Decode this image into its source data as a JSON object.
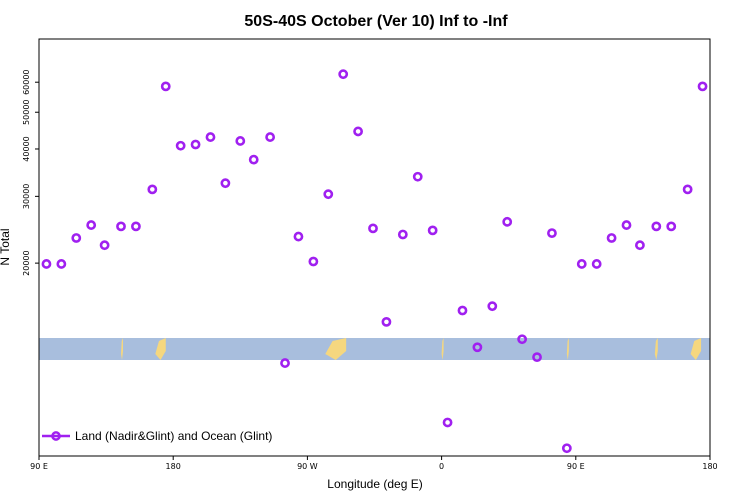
{
  "chart_data": {
    "type": "scatter",
    "title": "50S-40S October (Ver 10)   Inf to -Inf",
    "xlabel": "Longitude (deg E)",
    "ylabel": "N Total",
    "x_tick_labels": [
      "90 E",
      "180",
      "90 W",
      "0",
      "90 E",
      "180"
    ],
    "x_tick_values": [
      90,
      180,
      270,
      360,
      450,
      540
    ],
    "xlim": [
      90,
      540
    ],
    "y_scale": "log",
    "ylim": [
      6200,
      78000
    ],
    "y_tick_values": [
      20000,
      30000,
      40000,
      50000,
      60000
    ],
    "y_tick_labels": [
      "20000",
      "30000",
      "40000",
      "50000",
      "60000"
    ],
    "legend": {
      "label": "Land (Nadir&Glint) and Ocean (Glint)",
      "position": "bottom-left"
    },
    "series": [
      {
        "name": "Land (Nadir&Glint) and Ocean (Glint)",
        "color": "#a020f0",
        "points": [
          {
            "x": 95,
            "y": 19900
          },
          {
            "x": 105,
            "y": 19900
          },
          {
            "x": 115,
            "y": 23300
          },
          {
            "x": 125,
            "y": 25200
          },
          {
            "x": 134,
            "y": 22300
          },
          {
            "x": 145,
            "y": 25000
          },
          {
            "x": 155,
            "y": 25000
          },
          {
            "x": 166,
            "y": 31300
          },
          {
            "x": 175,
            "y": 58500
          },
          {
            "x": 185,
            "y": 40800
          },
          {
            "x": 195,
            "y": 41100
          },
          {
            "x": 205,
            "y": 43000
          },
          {
            "x": 215,
            "y": 32500
          },
          {
            "x": 225,
            "y": 42000
          },
          {
            "x": 234,
            "y": 37500
          },
          {
            "x": 245,
            "y": 43000
          },
          {
            "x": 255,
            "y": 10900
          },
          {
            "x": 264,
            "y": 23500
          },
          {
            "x": 274,
            "y": 20200
          },
          {
            "x": 284,
            "y": 30400
          },
          {
            "x": 294,
            "y": 63000
          },
          {
            "x": 304,
            "y": 44500
          },
          {
            "x": 314,
            "y": 24700
          },
          {
            "x": 323,
            "y": 14000
          },
          {
            "x": 334,
            "y": 23800
          },
          {
            "x": 344,
            "y": 33800
          },
          {
            "x": 354,
            "y": 24400
          },
          {
            "x": 364,
            "y": 7600
          },
          {
            "x": 374,
            "y": 15000
          },
          {
            "x": 384,
            "y": 12000
          },
          {
            "x": 394,
            "y": 15400
          },
          {
            "x": 404,
            "y": 25700
          },
          {
            "x": 414,
            "y": 12600
          },
          {
            "x": 424,
            "y": 11300
          },
          {
            "x": 434,
            "y": 24000
          },
          {
            "x": 444,
            "y": 6500
          },
          {
            "x": 454,
            "y": 19900
          },
          {
            "x": 464,
            "y": 19900
          },
          {
            "x": 474,
            "y": 23300
          },
          {
            "x": 484,
            "y": 25200
          },
          {
            "x": 493,
            "y": 22300
          },
          {
            "x": 504,
            "y": 25000
          },
          {
            "x": 514,
            "y": 25000
          },
          {
            "x": 525,
            "y": 31300
          },
          {
            "x": 535,
            "y": 58500
          }
        ]
      }
    ],
    "land_band": {
      "ocean_color": "#a8bedd",
      "land_color": "#f5d77f",
      "land_segments": [
        [
          145,
          146
        ],
        [
          168,
          175
        ],
        [
          282,
          296
        ],
        [
          360,
          361
        ],
        [
          444,
          445
        ],
        [
          503,
          505
        ],
        [
          527,
          534
        ]
      ]
    }
  }
}
